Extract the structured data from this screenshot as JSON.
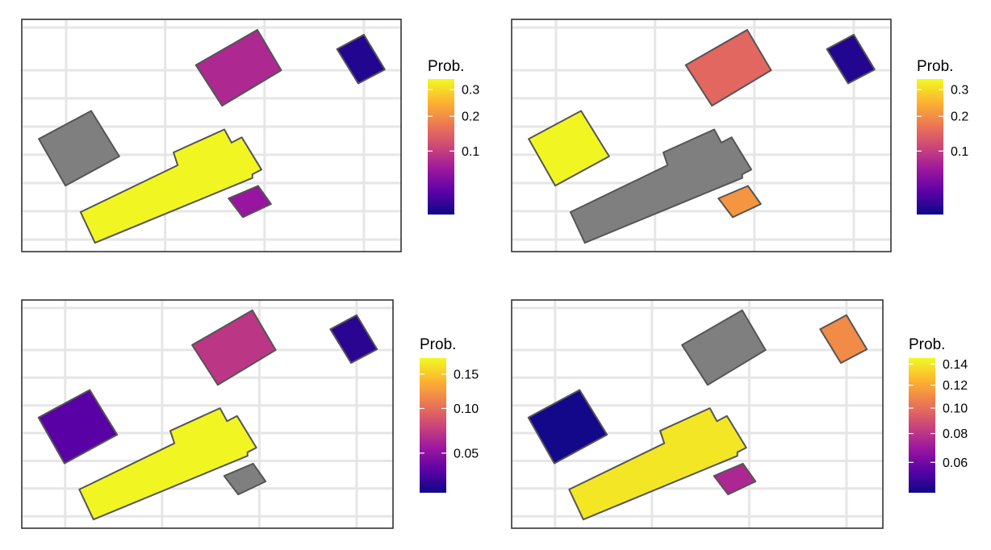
{
  "colormap": [
    "#0d0887",
    "#5c01a6",
    "#9c179e",
    "#cc4778",
    "#ed7953",
    "#fdb42f",
    "#f0f921"
  ],
  "na_color": "#7f7f7f",
  "outline_color": "#555555",
  "grid_color": "#e6e6e6",
  "panels": [
    {
      "legend": {
        "title": "Prob.",
        "ticks": [
          {
            "value": 0.1,
            "label": "0.1"
          },
          {
            "value": 0.2,
            "label": "0.2"
          },
          {
            "value": 0.3,
            "label": "0.3"
          }
        ]
      },
      "buildings": [
        {
          "id": "b1",
          "prob": 0.077
        },
        {
          "id": "b2",
          "prob": 0.01
        },
        {
          "id": "b3",
          "prob": null
        },
        {
          "id": "b4",
          "prob": 0.34
        },
        {
          "id": "b5",
          "prob": 0.058
        }
      ]
    },
    {
      "legend": {
        "title": "Prob.",
        "ticks": [
          {
            "value": 0.1,
            "label": "0.1"
          },
          {
            "value": 0.2,
            "label": "0.2"
          },
          {
            "value": 0.3,
            "label": "0.3"
          }
        ]
      },
      "buildings": [
        {
          "id": "b1",
          "prob": 0.15
        },
        {
          "id": "b2",
          "prob": 0.01
        },
        {
          "id": "b3",
          "prob": 0.34
        },
        {
          "id": "b4",
          "prob": null
        },
        {
          "id": "b5",
          "prob": 0.21
        }
      ]
    },
    {
      "legend": {
        "title": "Prob.",
        "ticks": [
          {
            "value": 0.05,
            "label": "0.05"
          },
          {
            "value": 0.1,
            "label": "0.10"
          },
          {
            "value": 0.15,
            "label": "0.15"
          }
        ]
      },
      "buildings": [
        {
          "id": "b1",
          "prob": 0.07
        },
        {
          "id": "b2",
          "prob": 0.025
        },
        {
          "id": "b3",
          "prob": 0.035
        },
        {
          "id": "b4",
          "prob": 0.175
        },
        {
          "id": "b5",
          "prob": null
        }
      ]
    },
    {
      "legend": {
        "title": "Prob.",
        "ticks": [
          {
            "value": 0.06,
            "label": "0.06"
          },
          {
            "value": 0.08,
            "label": "0.08"
          },
          {
            "value": 0.1,
            "label": "0.10"
          },
          {
            "value": 0.12,
            "label": "0.12"
          },
          {
            "value": 0.14,
            "label": "0.14"
          }
        ]
      },
      "buildings": [
        {
          "id": "b1",
          "prob": null
        },
        {
          "id": "b2",
          "prob": 0.11
        },
        {
          "id": "b3",
          "prob": 0.043
        },
        {
          "id": "b4",
          "prob": 0.14
        },
        {
          "id": "b5",
          "prob": 0.075
        }
      ]
    }
  ]
}
